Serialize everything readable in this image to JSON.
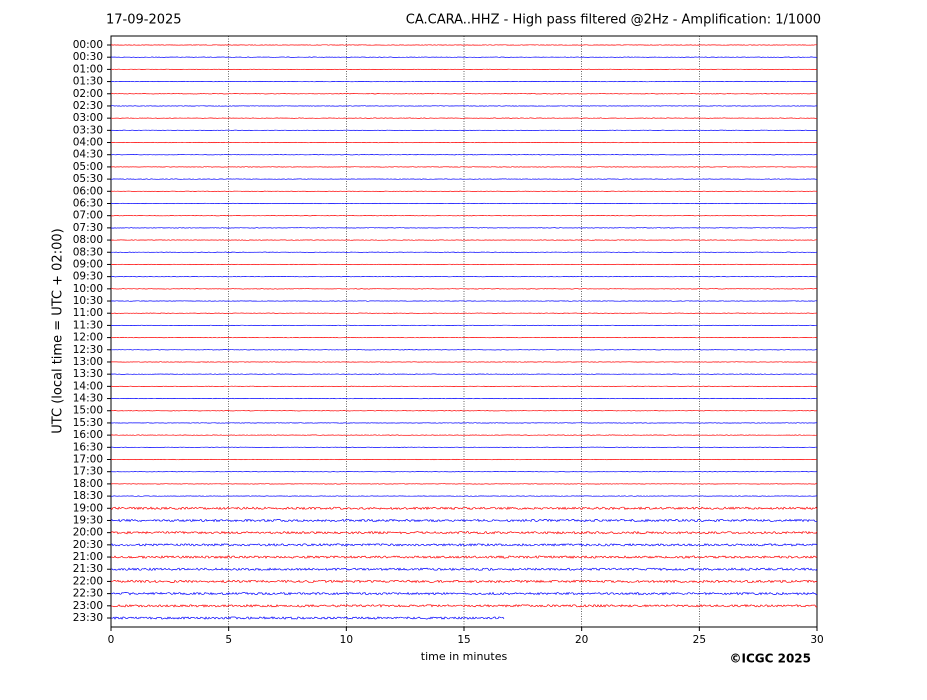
{
  "chart_data": {
    "type": "helicorder",
    "date": "17-09-2025",
    "title": "CA.CARA..HHZ - High pass filtered @2Hz - Amplification: 1/1000",
    "y_label": "UTC (local time = UTC + 02:00)",
    "x_label": "time in minutes",
    "credit": "©ICGC 2025",
    "categories": [
      "00:00",
      "00:30",
      "01:00",
      "01:30",
      "02:00",
      "02:30",
      "03:00",
      "03:30",
      "04:00",
      "04:30",
      "05:00",
      "05:30",
      "06:00",
      "06:30",
      "07:00",
      "07:30",
      "08:00",
      "08:30",
      "09:00",
      "09:30",
      "10:00",
      "10:30",
      "11:00",
      "11:30",
      "12:00",
      "12:30",
      "13:00",
      "13:30",
      "14:00",
      "14:30",
      "15:00",
      "15:30",
      "16:00",
      "16:30",
      "17:00",
      "17:30",
      "18:00",
      "18:30",
      "19:00",
      "19:30",
      "20:00",
      "20:30",
      "21:00",
      "21:30",
      "22:00",
      "22:30",
      "23:00",
      "23:30"
    ],
    "trace_colors": [
      "#ff0000",
      "#0000ff"
    ],
    "last_trace_end": 16.7,
    "xlim": [
      0,
      30
    ],
    "xticks": [
      0,
      5,
      10,
      15,
      20,
      25,
      30
    ],
    "grid": true
  }
}
